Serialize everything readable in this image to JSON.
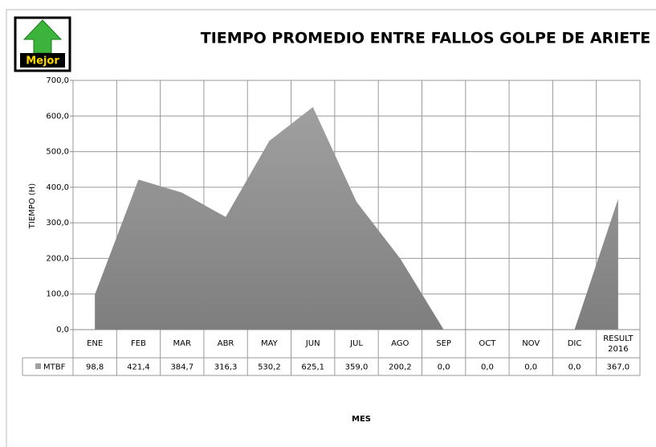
{
  "chart_data": {
    "type": "area",
    "title": "TIEMPO PROMEDIO ENTRE FALLOS GOLPE DE ARIETE",
    "badge": "Mejor",
    "x_label": "MES",
    "y_label": "TIEMPO (H)",
    "categories": [
      "ENE",
      "FEB",
      "MAR",
      "ABR",
      "MAY",
      "JUN",
      "JUL",
      "AGO",
      "SEP",
      "OCT",
      "NOV",
      "DIC",
      "RESULT 2016"
    ],
    "series": [
      {
        "name": "MTBF",
        "color": "#a0a0a0",
        "values": [
          98.8,
          421.4,
          384.7,
          316.3,
          530.2,
          625.1,
          359.0,
          200.2,
          0.0,
          0.0,
          0.0,
          0.0,
          367.0
        ],
        "value_labels": [
          "98,8",
          "421,4",
          "384,7",
          "316,3",
          "530,2",
          "625,1",
          "359,0",
          "200,2",
          "0,0",
          "0,0",
          "0,0",
          "0,0",
          "367,0"
        ]
      }
    ],
    "ylim": [
      0,
      700
    ],
    "yticks": [
      {
        "value": 0,
        "label": "0,0"
      },
      {
        "value": 100,
        "label": "100,0"
      },
      {
        "value": 200,
        "label": "200,0"
      },
      {
        "value": 300,
        "label": "300,0"
      },
      {
        "value": 400,
        "label": "400,0"
      },
      {
        "value": 500,
        "label": "500,0"
      },
      {
        "value": 600,
        "label": "600,0"
      },
      {
        "value": 700,
        "label": "700,0"
      }
    ],
    "grid": true
  }
}
